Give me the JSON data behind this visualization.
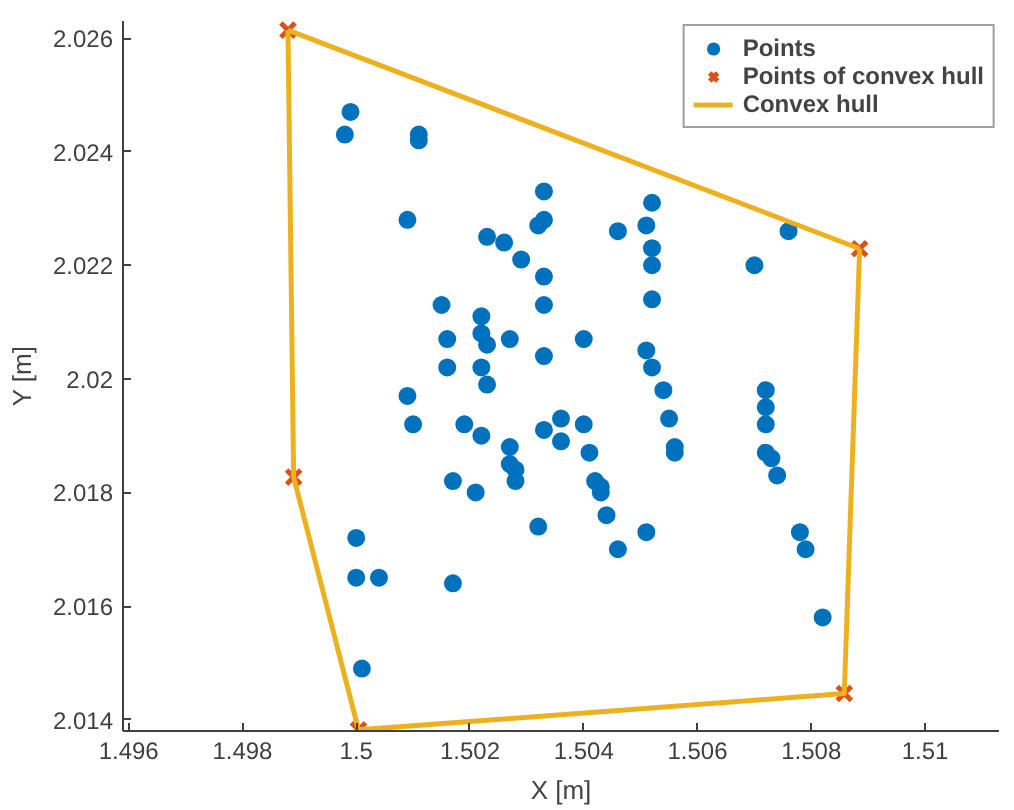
{
  "chart_data": {
    "type": "scatter",
    "xlabel": "X [m]",
    "ylabel": "Y [m]",
    "xlim": [
      1.4959,
      1.5113
    ],
    "ylim": [
      2.0138,
      2.0263
    ],
    "xticks": [
      1.496,
      1.498,
      1.5,
      1.502,
      1.504,
      1.506,
      1.508,
      1.51
    ],
    "yticks": [
      2.014,
      2.016,
      2.018,
      2.02,
      2.022,
      2.024,
      2.026
    ],
    "grid": false,
    "legend": "top right",
    "series": [
      {
        "name": "Points",
        "marker": "circle",
        "color": "#0072bd",
        "x": [
          1.4999,
          1.4998,
          1.5011,
          1.5011,
          1.5009,
          1.5023,
          1.5026,
          1.5029,
          1.5033,
          1.5033,
          1.5032,
          1.5033,
          1.5033,
          1.5015,
          1.5022,
          1.5022,
          1.5023,
          1.5027,
          1.5016,
          1.5016,
          1.5022,
          1.5023,
          1.5009,
          1.501,
          1.5019,
          1.5022,
          1.5027,
          1.5027,
          1.5028,
          1.5028,
          1.5017,
          1.5021,
          1.5032,
          1.5,
          1.5,
          1.5004,
          1.5017,
          1.5001,
          1.5052,
          1.5051,
          1.5052,
          1.5052,
          1.5052,
          1.5046,
          1.5076,
          1.507,
          1.504,
          1.5033,
          1.5051,
          1.5052,
          1.5054,
          1.5072,
          1.5072,
          1.5072,
          1.5072,
          1.5073,
          1.5074,
          1.5055,
          1.5056,
          1.5056,
          1.5033,
          1.5036,
          1.5036,
          1.504,
          1.5041,
          1.5042,
          1.5043,
          1.5043,
          1.5044,
          1.5046,
          1.5051,
          1.5078,
          1.5079,
          1.5082
        ],
        "values": [
          2.0247,
          2.0243,
          2.0243,
          2.0242,
          2.0228,
          2.0225,
          2.0224,
          2.0221,
          2.0233,
          2.0228,
          2.0227,
          2.0218,
          2.0213,
          2.0213,
          2.0211,
          2.0208,
          2.0206,
          2.0207,
          2.0207,
          2.0202,
          2.0202,
          2.0199,
          2.0197,
          2.0192,
          2.0192,
          2.019,
          2.0188,
          2.0185,
          2.0184,
          2.0182,
          2.0182,
          2.018,
          2.0174,
          2.0172,
          2.0165,
          2.0165,
          2.0164,
          2.0149,
          2.0231,
          2.0227,
          2.0223,
          2.022,
          2.0214,
          2.0226,
          2.0226,
          2.022,
          2.0207,
          2.0204,
          2.0205,
          2.0202,
          2.0198,
          2.0198,
          2.0195,
          2.0192,
          2.0187,
          2.0186,
          2.0183,
          2.0193,
          2.0188,
          2.0187,
          2.0191,
          2.0193,
          2.0189,
          2.0192,
          2.0187,
          2.0182,
          2.0181,
          2.018,
          2.0176,
          2.017,
          2.0173,
          2.0173,
          2.017,
          2.0158
        ]
      },
      {
        "name": "Points of convex hull",
        "type": "scatter",
        "marker": "cross",
        "color": "#d95319",
        "x": [
          1.4988,
          1.50885,
          1.50858,
          1.50004,
          1.4989
        ],
        "values": [
          2.02614,
          2.02229,
          2.01446,
          2.01382,
          2.01827
        ]
      },
      {
        "name": "Convex hull",
        "type": "line",
        "marker": "none",
        "line_style": "solid",
        "color": "#edb120",
        "x": [
          1.4988,
          1.4989,
          1.50004,
          1.50858,
          1.50885
        ],
        "values": [
          2.02614,
          2.01827,
          2.01382,
          2.01446,
          2.02229
        ]
      },
      {
        "type": "line",
        "marker": "none",
        "line_style": "solid",
        "color": "#edb120",
        "x": [
          1.4988,
          1.50885
        ],
        "values": [
          2.02614,
          2.02229
        ]
      }
    ]
  }
}
